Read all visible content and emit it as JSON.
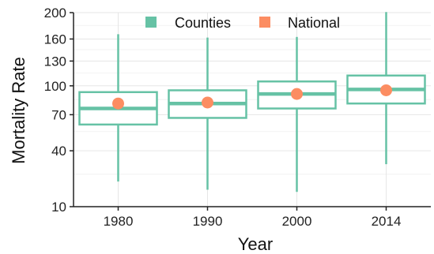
{
  "chart_data": {
    "type": "boxplot",
    "xlabel": "Year",
    "ylabel": "Mortality Rate",
    "y_scale": "sqrt",
    "ylim": [
      10,
      200
    ],
    "yticks": [
      10,
      40,
      70,
      100,
      130,
      160,
      200
    ],
    "grid": true,
    "legend_position": "top-center",
    "categories": [
      "1980",
      "1990",
      "2000",
      "2014"
    ],
    "series": [
      {
        "name": "Counties",
        "type": "box",
        "color": "#66c2a5",
        "boxes": [
          {
            "whisker_low": 21,
            "q1": 61,
            "median": 76,
            "q3": 93,
            "whisker_high": 167
          },
          {
            "whisker_low": 17,
            "q1": 67,
            "median": 81,
            "q3": 95,
            "whisker_high": 162
          },
          {
            "whisker_low": 16,
            "q1": 76,
            "median": 91,
            "q3": 105,
            "whisker_high": 163
          },
          {
            "whisker_low": 31,
            "q1": 81,
            "median": 96,
            "q3": 112,
            "whisker_high": 201
          }
        ]
      },
      {
        "name": "National",
        "type": "point",
        "color": "#fc8d62",
        "values": [
          81,
          82,
          91,
          95
        ]
      }
    ]
  }
}
